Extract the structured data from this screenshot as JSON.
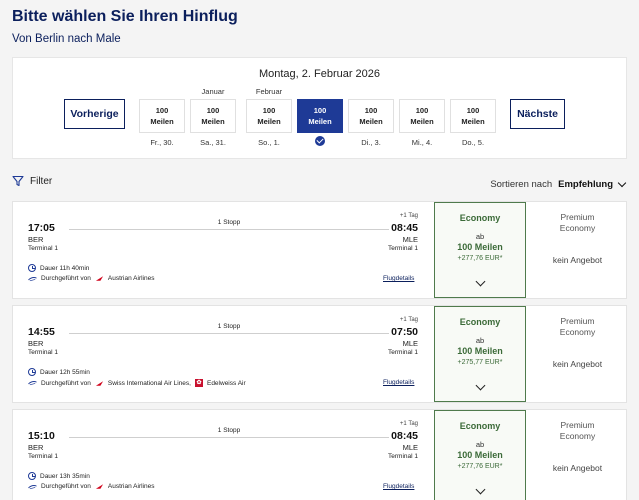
{
  "header": {
    "title": "Bitte wählen Sie Ihren Hinflug",
    "subtitle": "Von Berlin nach Male"
  },
  "date_picker": {
    "selected_date": "Montag, 2. Februar 2026",
    "prev_label": "Vorherige",
    "next_label": "Nächste",
    "days": [
      {
        "top": "100",
        "bottom": "Meilen",
        "label": "Fr., 30.",
        "month": ""
      },
      {
        "top": "100",
        "bottom": "Meilen",
        "label": "Sa., 31.",
        "month": "Januar"
      },
      {
        "top": "100",
        "bottom": "Meilen",
        "label": "So., 1.",
        "month": "Februar"
      },
      {
        "top": "100",
        "bottom": "Meilen",
        "label": "",
        "month": ""
      },
      {
        "top": "100",
        "bottom": "Meilen",
        "label": "Di., 3.",
        "month": ""
      },
      {
        "top": "100",
        "bottom": "Meilen",
        "label": "Mi., 4.",
        "month": ""
      },
      {
        "top": "100",
        "bottom": "Meilen",
        "label": "Do., 5.",
        "month": ""
      }
    ]
  },
  "toolbar": {
    "filter_label": "Filter",
    "sort_label": "Sortieren nach",
    "sort_value": "Empfehlung"
  },
  "flights": [
    {
      "dep_time": "17:05",
      "dep_code": "BER",
      "dep_terminal": "Terminal 1",
      "arr_time": "08:45",
      "arr_code": "MLE",
      "arr_terminal": "Terminal 1",
      "day_offset": "+1 Tag",
      "stops": "1 Stopp",
      "duration": "Dauer 11h 40min",
      "operated_prefix": "Durchgeführt von",
      "airline1": "Austrian Airlines",
      "airline2": "",
      "details": "Flugdetails",
      "eco_title": "Economy",
      "eco_ab": "ab",
      "eco_miles": "100 Meilen",
      "eco_eur": "+277,76 EUR*",
      "prem_title1": "Premium",
      "prem_title2": "Economy",
      "prem_none": "kein Angebot"
    },
    {
      "dep_time": "14:55",
      "dep_code": "BER",
      "dep_terminal": "Terminal 1",
      "arr_time": "07:50",
      "arr_code": "MLE",
      "arr_terminal": "Terminal 1",
      "day_offset": "+1 Tag",
      "stops": "1 Stopp",
      "duration": "Dauer 12h 55min",
      "operated_prefix": "Durchgeführt von",
      "airline1": "Swiss International Air Lines,",
      "airline2": "Edelweiss Air",
      "details": "Flugdetails",
      "eco_title": "Economy",
      "eco_ab": "ab",
      "eco_miles": "100 Meilen",
      "eco_eur": "+275,77 EUR*",
      "prem_title1": "Premium",
      "prem_title2": "Economy",
      "prem_none": "kein Angebot"
    },
    {
      "dep_time": "15:10",
      "dep_code": "BER",
      "dep_terminal": "Terminal 1",
      "arr_time": "08:45",
      "arr_code": "MLE",
      "arr_terminal": "Terminal 1",
      "day_offset": "+1 Tag",
      "stops": "1 Stopp",
      "duration": "Dauer 13h 35min",
      "operated_prefix": "Durchgeführt von",
      "airline1": "Austrian Airlines",
      "airline2": "",
      "details": "Flugdetails",
      "eco_title": "Economy",
      "eco_ab": "ab",
      "eco_miles": "100 Meilen",
      "eco_eur": "+277,76 EUR*",
      "prem_title1": "Premium",
      "prem_title2": "Economy",
      "prem_none": "kein Angebot"
    }
  ]
}
